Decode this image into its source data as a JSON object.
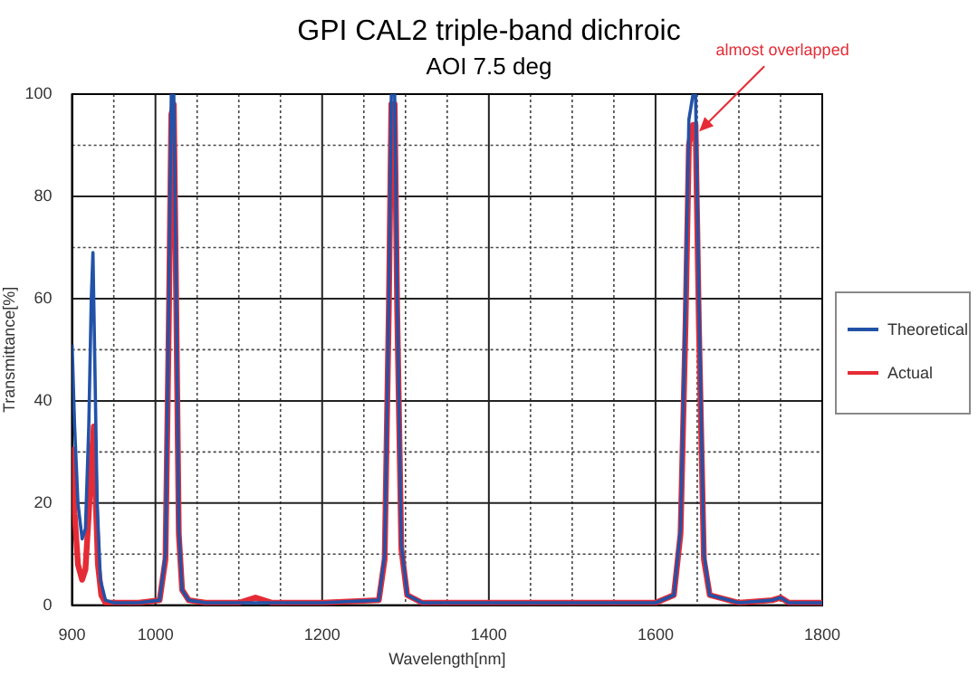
{
  "chart_data": {
    "type": "line",
    "title": "GPI CAL2 triple-band dichroic",
    "subtitle": "AOI 7.5 deg",
    "xlabel": "Wavelength[nm]",
    "ylabel": "Transmittance[%]",
    "xlim": [
      900,
      1800
    ],
    "xticks": [
      900,
      {
        "value": 950,
        "label": null
      },
      1000,
      {
        "value": 1050,
        "label": null
      },
      {
        "value": 1100,
        "label": null
      },
      {
        "value": 1150,
        "label": null
      },
      1200,
      {
        "value": 1250,
        "label": null
      },
      {
        "value": 1300,
        "label": null
      },
      {
        "value": 1350,
        "label": null
      },
      1400,
      {
        "value": 1450,
        "label": null
      },
      {
        "value": 1500,
        "label": null
      },
      {
        "value": 1550,
        "label": null
      },
      1600,
      {
        "value": 1650,
        "label": null
      },
      {
        "value": 1700,
        "label": null
      },
      {
        "value": 1750,
        "label": null
      },
      1800
    ],
    "ylim": [
      0,
      100
    ],
    "yticks": [
      0,
      {
        "value": 10,
        "label": null
      },
      20,
      {
        "value": 30,
        "label": null
      },
      40,
      {
        "value": 50,
        "label": null
      },
      60,
      {
        "value": 70,
        "label": null
      },
      80,
      {
        "value": 90,
        "label": null
      },
      100
    ],
    "grid": true,
    "legend": "right",
    "marker": "none",
    "line_style": "solid",
    "annotations": [
      {
        "text": "almost overlapped",
        "x": 1648,
        "y": 92
      }
    ],
    "series": [
      {
        "name": "Theoretical",
        "color": "#2252a8",
        "x": [
          900,
          903,
          907,
          912,
          916,
          920,
          923,
          925,
          927,
          930,
          934,
          940,
          950,
          980,
          1005,
          1012,
          1016,
          1019,
          1022,
          1025,
          1028,
          1032,
          1040,
          1060,
          1100,
          1200,
          1268,
          1275,
          1280,
          1283,
          1287,
          1290,
          1295,
          1302,
          1320,
          1400,
          1500,
          1600,
          1622,
          1630,
          1636,
          1640,
          1645,
          1648,
          1652,
          1658,
          1665,
          1700,
          1740,
          1750,
          1760,
          1800
        ],
        "values": [
          51,
          35,
          20,
          13,
          15,
          35,
          60,
          69,
          50,
          20,
          5,
          1,
          0.5,
          0.5,
          1,
          10,
          60,
          100,
          100,
          60,
          15,
          3,
          1,
          0.5,
          0.5,
          0.5,
          1,
          10,
          60,
          100,
          100,
          60,
          12,
          2,
          0.5,
          0.5,
          0.5,
          0.5,
          2,
          15,
          60,
          95,
          100,
          100,
          60,
          10,
          2,
          0.5,
          1,
          1.5,
          0.5,
          0.5
        ]
      },
      {
        "name": "Actual",
        "color": "#e52b35",
        "x": [
          900,
          903,
          907,
          912,
          916,
          920,
          924,
          926,
          928,
          931,
          935,
          940,
          950,
          980,
          1005,
          1012,
          1016,
          1019,
          1022,
          1025,
          1028,
          1032,
          1040,
          1060,
          1100,
          1120,
          1140,
          1200,
          1268,
          1275,
          1280,
          1283,
          1287,
          1290,
          1295,
          1302,
          1320,
          1400,
          1500,
          1600,
          1622,
          1630,
          1636,
          1640,
          1645,
          1648,
          1652,
          1658,
          1665,
          1700,
          1740,
          1750,
          1760,
          1800
        ],
        "values": [
          31,
          18,
          8,
          5,
          7,
          18,
          30,
          35,
          22,
          8,
          2,
          0.5,
          0.5,
          0.5,
          1,
          9,
          55,
          96,
          98,
          58,
          14,
          3,
          1,
          0.5,
          0.5,
          1.5,
          0.5,
          0.5,
          1,
          9,
          58,
          98,
          98,
          58,
          11,
          2,
          0.5,
          0.5,
          0.5,
          0.5,
          2,
          14,
          55,
          90,
          94,
          94,
          55,
          9,
          2,
          0.5,
          1,
          1.5,
          0.5,
          0.5
        ]
      }
    ]
  }
}
